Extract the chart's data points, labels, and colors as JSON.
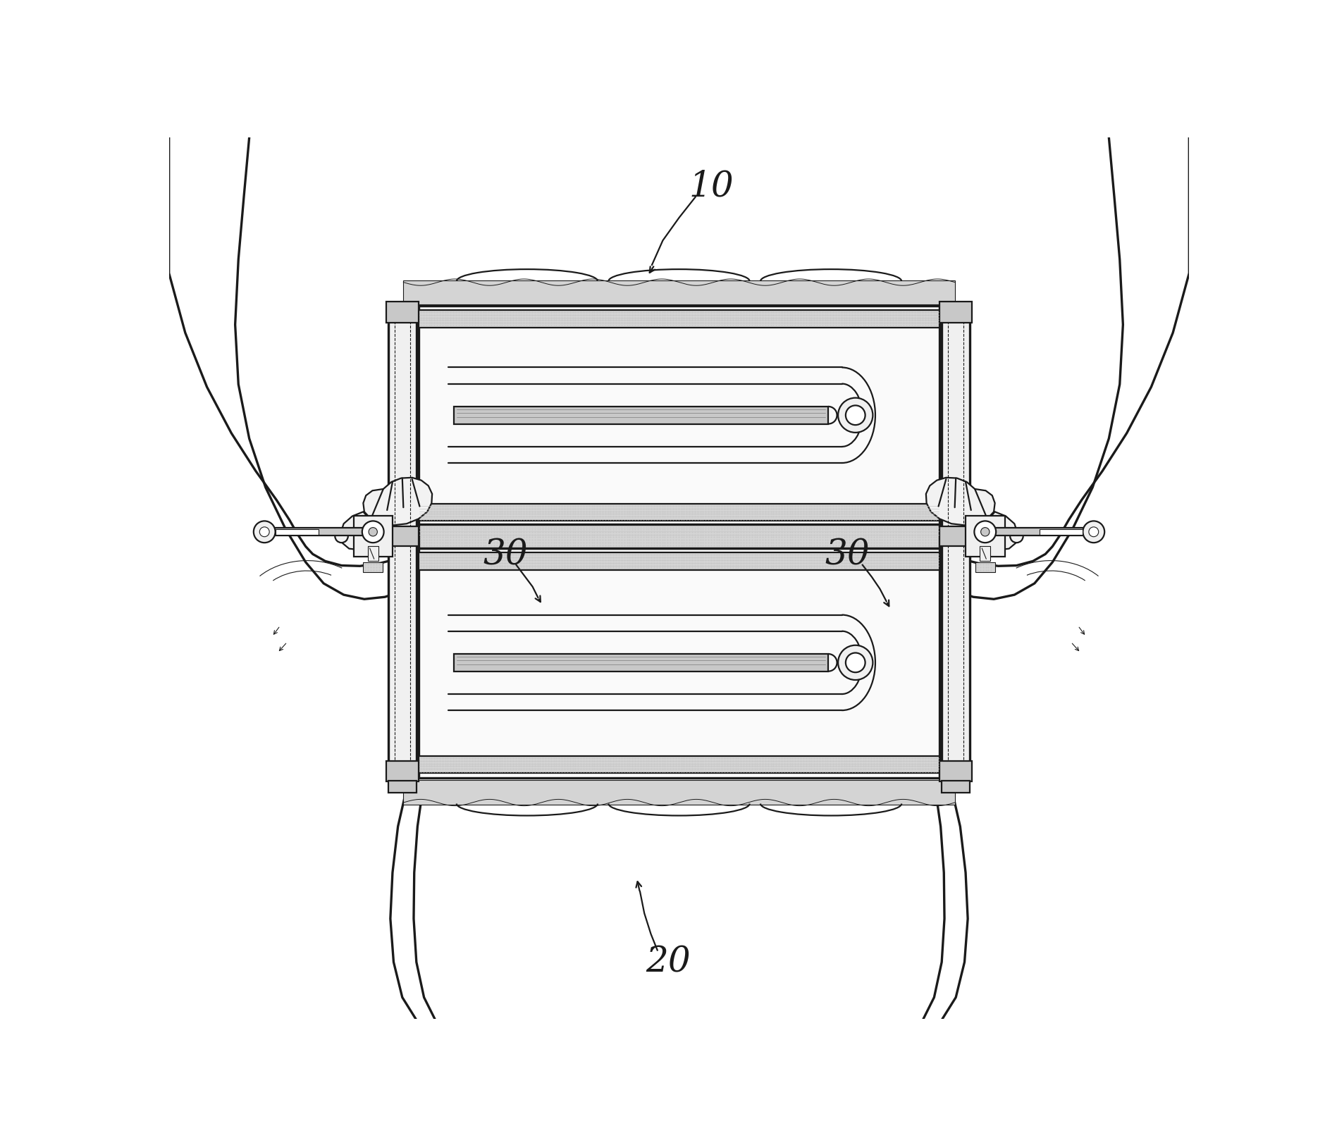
{
  "bg_color": "#ffffff",
  "line_color": "#1a1a1a",
  "light_gray": "#f0f0f0",
  "medium_gray": "#c8c8c8",
  "dark_gray": "#888888",
  "stipple": "#d4d4d4",
  "label_10": "10",
  "label_20": "20",
  "label_30_left": "30",
  "label_30_right": "30",
  "label_fontsize": 36,
  "figsize": [
    18.8,
    16.25
  ],
  "dpi": 100
}
